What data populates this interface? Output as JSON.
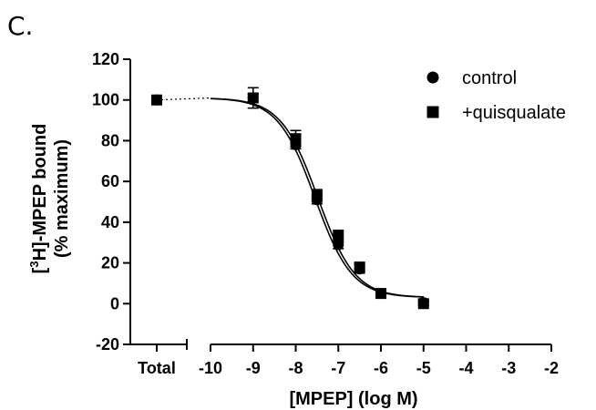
{
  "panel_label": "C.",
  "chart_data": {
    "type": "scatter",
    "xlabel": "[MPEP] (log M)",
    "ylabel_line1_prefix": "[",
    "ylabel_line1_sup": "3",
    "ylabel_line1_suffix": "H]-MPEP bound",
    "ylabel_line2": "(% maximum)",
    "xlim": [
      -10,
      -2
    ],
    "ylim": [
      -20,
      120
    ],
    "x_ticks": [
      -10,
      -9,
      -8,
      -7,
      -6,
      -5,
      -4,
      -3,
      -2
    ],
    "y_ticks": [
      -20,
      0,
      20,
      40,
      60,
      80,
      100,
      120
    ],
    "total_label": "Total",
    "legend_position": "top-right",
    "series": [
      {
        "name": "control",
        "marker": "circle",
        "x": [
          "Total",
          -9,
          -8,
          -7.5,
          -7,
          -6.5,
          -6,
          -5
        ],
        "y": [
          100,
          101,
          78,
          51,
          29,
          17,
          5,
          0.5
        ],
        "err": [
          0,
          2,
          2,
          2,
          2,
          2,
          1,
          1
        ]
      },
      {
        "name": "+quisqualate",
        "marker": "square",
        "x": [
          "Total",
          -9,
          -8,
          -7.5,
          -7,
          -6.5,
          -6,
          -5
        ],
        "y": [
          100,
          101,
          81,
          53,
          33,
          18,
          5,
          0
        ],
        "err": [
          0,
          5,
          4,
          3,
          3,
          2,
          1,
          1
        ]
      }
    ],
    "fit_curves": [
      {
        "series": "control",
        "top": 101,
        "bottom": 3,
        "logIC50": -7.55,
        "hill": 1.0
      },
      {
        "series": "+quisqualate",
        "top": 101,
        "bottom": 3,
        "logIC50": -7.48,
        "hill": 1.0
      }
    ]
  }
}
